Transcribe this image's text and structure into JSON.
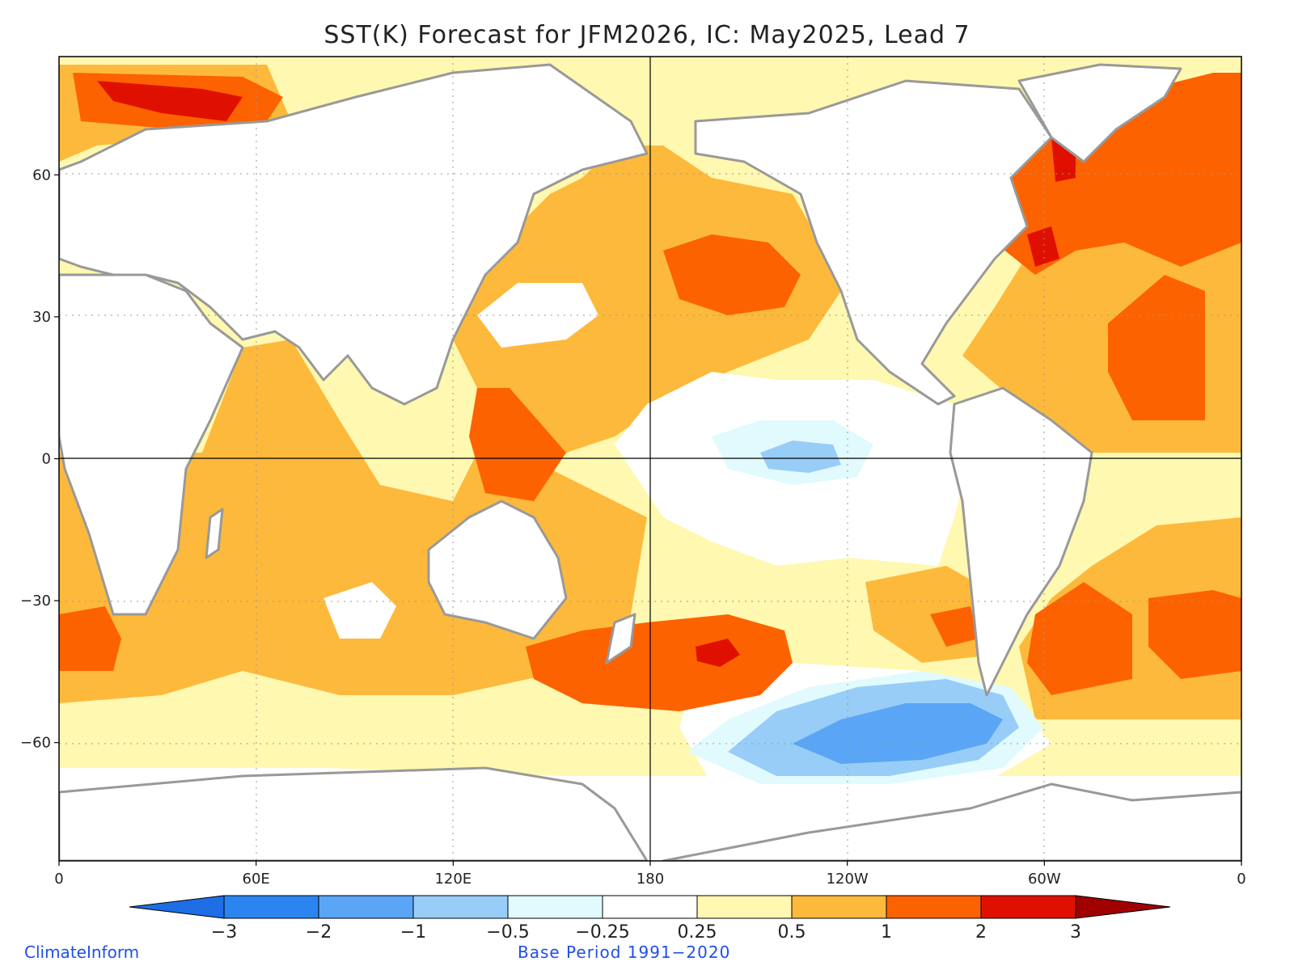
{
  "title": "SST(K) Forecast for JFM2026, IC: May2025, Lead 7",
  "credit": "ClimateInform",
  "base_period": "Base Period 1991−2020",
  "axes": {
    "y_ticks": [
      {
        "label": "60",
        "lat": 60
      },
      {
        "label": "30",
        "lat": 30
      },
      {
        "label": "0",
        "lat": 0
      },
      {
        "label": "−30",
        "lat": -30
      },
      {
        "label": "−60",
        "lat": -60
      }
    ],
    "x_ticks": [
      {
        "label": "0",
        "lon": 0
      },
      {
        "label": "60E",
        "lon": 60
      },
      {
        "label": "120E",
        "lon": 120
      },
      {
        "label": "180",
        "lon": 180
      },
      {
        "label": "120W",
        "lon": 240
      },
      {
        "label": "60W",
        "lon": 300
      },
      {
        "label": "0",
        "lon": 360
      }
    ],
    "lat_range": [
      -85,
      85
    ],
    "lon_range": [
      0,
      360
    ]
  },
  "colorbar": {
    "labels": [
      "−3",
      "−2",
      "−1",
      "−0.5",
      "−0.25",
      "0.25",
      "0.5",
      "1",
      "2",
      "3"
    ],
    "colors": [
      "#1e6ee6",
      "#2a85f0",
      "#5aa5f5",
      "#98cdf8",
      "#e0fafe",
      "#ffffff",
      "#fff8b0",
      "#fdb93c",
      "#fd6200",
      "#e01000",
      "#a00000"
    ]
  }
}
